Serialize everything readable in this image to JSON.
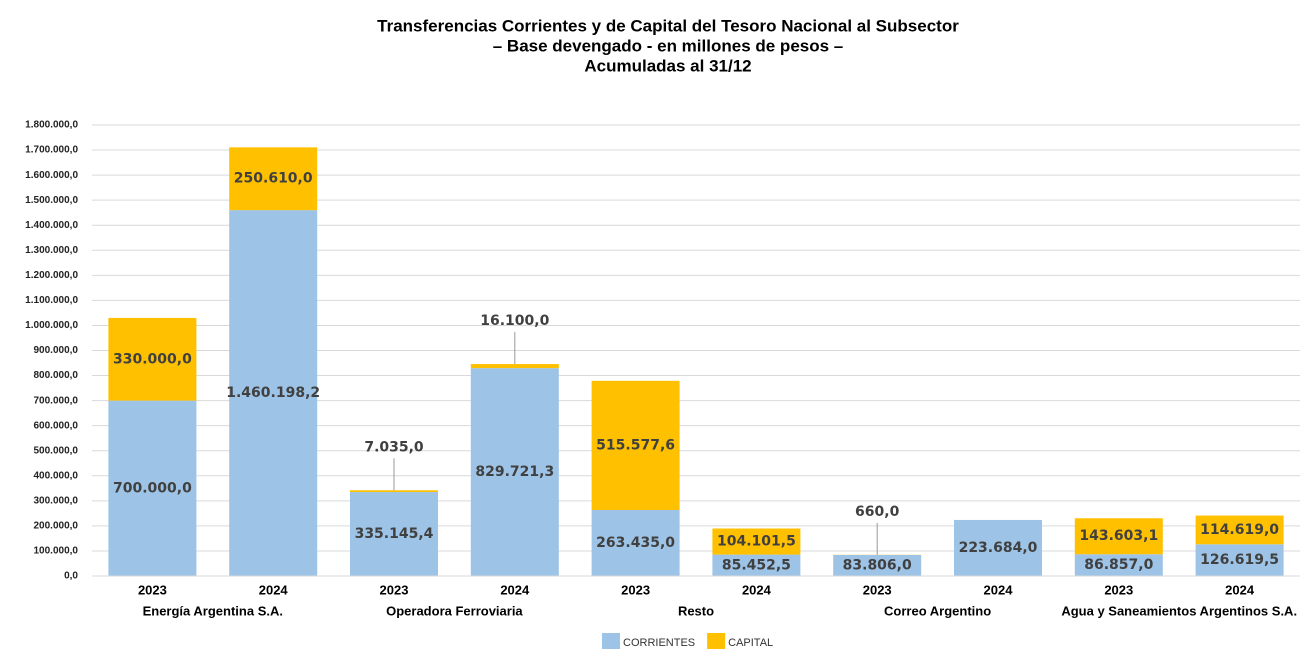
{
  "chart_data": {
    "type": "stacked-bar",
    "title": [
      "Transferencias Corrientes y de Capital del Tesoro Nacional al Subsector",
      "– Base devengado - en millones de pesos –",
      "Acumuladas al 31/12"
    ],
    "categories": [
      "2023",
      "2024",
      "2023",
      "2024",
      "2023",
      "2024",
      "2023",
      "2024",
      "2023",
      "2024"
    ],
    "groups": [
      "Energía Argentina S.A.",
      "Operadora Ferroviaria",
      "Resto",
      "Correo Argentino",
      "Agua y Saneamientos Argentinos S.A."
    ],
    "series": [
      {
        "name": "CORRIENTES",
        "color": "#9dc3e6",
        "values": [
          700000.0,
          1460198.2,
          335145.4,
          829721.3,
          263435.0,
          85452.5,
          83806.0,
          223684.0,
          86857.0,
          126619.5
        ],
        "value_labels": [
          "700.000,0",
          "1.460.198,2",
          "335.145,4",
          "829.721,3",
          "263.435,0",
          "85.452,5",
          "83.806,0",
          "223.684,0",
          "86.857,0",
          "126.619,5"
        ]
      },
      {
        "name": "CAPITAL",
        "color": "#ffc000",
        "values": [
          330000.0,
          250610.0,
          7035.0,
          16100.0,
          515577.6,
          104101.5,
          660.0,
          null,
          143603.1,
          114619.0
        ],
        "value_labels": [
          "330.000,0",
          "250.610,0",
          "7.035,0",
          "16.100,0",
          "515.577,6",
          "104.101,5",
          "660,0",
          null,
          "143.603,1",
          "114.619,0"
        ]
      }
    ],
    "ylim": [
      0,
      1800000
    ],
    "yticks": [
      {
        "value": 0,
        "label": "0,0"
      },
      {
        "value": 100000,
        "label": "100.000,0"
      },
      {
        "value": 200000,
        "label": "200.000,0"
      },
      {
        "value": 300000,
        "label": "300.000,0"
      },
      {
        "value": 400000,
        "label": "400.000,0"
      },
      {
        "value": 500000,
        "label": "500.000,0"
      },
      {
        "value": 600000,
        "label": "600.000,0"
      },
      {
        "value": 700000,
        "label": "700.000,0"
      },
      {
        "value": 800000,
        "label": "800.000,0"
      },
      {
        "value": 900000,
        "label": "900.000,0"
      },
      {
        "value": 1000000,
        "label": "1.000.000,0"
      },
      {
        "value": 1100000,
        "label": "1.100.000,0"
      },
      {
        "value": 1200000,
        "label": "1.200.000,0"
      },
      {
        "value": 1300000,
        "label": "1.300.000,0"
      },
      {
        "value": 1400000,
        "label": "1.400.000,0"
      },
      {
        "value": 1500000,
        "label": "1.500.000,0"
      },
      {
        "value": 1600000,
        "label": "1.600.000,0"
      },
      {
        "value": 1700000,
        "label": "1.700.000,0"
      },
      {
        "value": 1800000,
        "label": "1.800.000,0"
      }
    ],
    "grid": true,
    "legend": "bottom"
  }
}
